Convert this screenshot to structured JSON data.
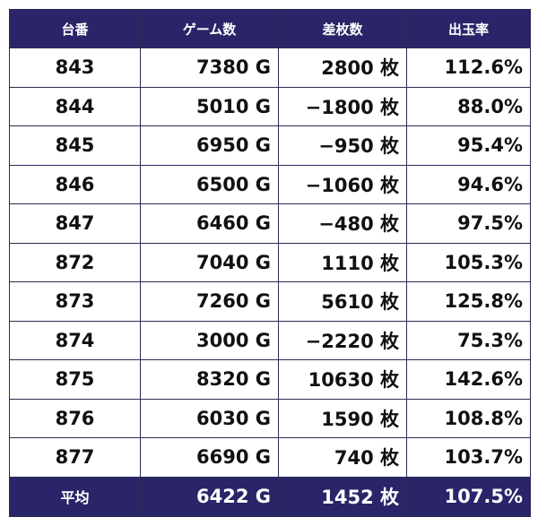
{
  "table": {
    "headers": [
      "台番",
      "ゲーム数",
      "差枚数",
      "出玉率"
    ],
    "rows": [
      {
        "num": "843",
        "games": "7380 G",
        "diff": "2800 枚",
        "rate": "112.6%"
      },
      {
        "num": "844",
        "games": "5010 G",
        "diff": "−1800 枚",
        "rate": "88.0%"
      },
      {
        "num": "845",
        "games": "6950 G",
        "diff": "−950 枚",
        "rate": "95.4%"
      },
      {
        "num": "846",
        "games": "6500 G",
        "diff": "−1060 枚",
        "rate": "94.6%"
      },
      {
        "num": "847",
        "games": "6460 G",
        "diff": "−480 枚",
        "rate": "97.5%"
      },
      {
        "num": "872",
        "games": "7040 G",
        "diff": "1110 枚",
        "rate": "105.3%"
      },
      {
        "num": "873",
        "games": "7260 G",
        "diff": "5610 枚",
        "rate": "125.8%"
      },
      {
        "num": "874",
        "games": "3000 G",
        "diff": "−2220 枚",
        "rate": "75.3%"
      },
      {
        "num": "875",
        "games": "8320 G",
        "diff": "10630 枚",
        "rate": "142.6%"
      },
      {
        "num": "876",
        "games": "6030 G",
        "diff": "1590 枚",
        "rate": "108.8%"
      },
      {
        "num": "877",
        "games": "6690 G",
        "diff": "740 枚",
        "rate": "103.7%"
      }
    ],
    "footer": {
      "label": "平均",
      "games": "6422 G",
      "diff": "1452 枚",
      "rate": "107.5%"
    },
    "colors": {
      "header_bg": "#2a2468",
      "header_text": "#ffffff",
      "border": "#2a2a55"
    }
  }
}
